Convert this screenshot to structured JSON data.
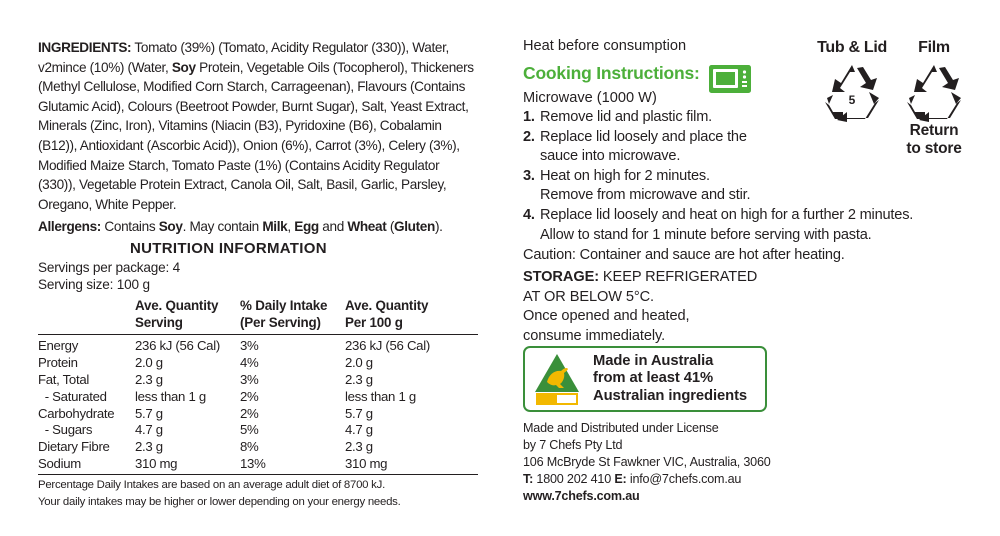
{
  "ingredients": {
    "label": "INGREDIENTS:",
    "text_before_soy": " Tomato (39%) (Tomato, Acidity Regulator (330)), Water, v2mince (10%) (Water, ",
    "soy": "Soy",
    "text_after_soy": " Protein, Vegetable Oils (Tocopherol), Thickeners (Methyl Cellulose, Modified Corn Starch, Carrageenan), Flavours (Contains Glutamic Acid), Colours (Beetroot Powder, Burnt Sugar), Salt, Yeast Extract, Minerals (Zinc, Iron), Vitamins (Niacin (B3), Pyridoxine (B6), Cobalamin (B12)), Antioxidant (Ascorbic Acid)), Onion (6%), Carrot (3%), Celery (3%), Modified Maize Starch, Tomato Paste (1%) (Contains Acidity Regulator (330)), Vegetable Protein Extract, Canola Oil, Salt, Basil, Garlic, Parsley, Oregano, White Pepper."
  },
  "allergens": {
    "label": "Allergens:",
    "t1": " Contains ",
    "soy": "Soy",
    "t2": ". May contain ",
    "milk": "Milk",
    "t3": ", ",
    "egg": "Egg",
    "t4": " and ",
    "wheat": "Wheat",
    "t5": " (",
    "gluten": "Gluten",
    "t6": ")."
  },
  "nutrition": {
    "title": "NUTRITION INFORMATION",
    "servings_per_package": "Servings per package: 4",
    "serving_size": "Serving size: 100 g",
    "headers": [
      {
        "l1": "",
        "l2": ""
      },
      {
        "l1": "Ave. Quantity",
        "l2": "Serving"
      },
      {
        "l1": "% Daily Intake",
        "l2": "(Per Serving)"
      },
      {
        "l1": "Ave. Quantity",
        "l2": "Per 100 g"
      }
    ],
    "rows": [
      [
        "Energy",
        "236 kJ (56 Cal)",
        "3%",
        "236 kJ (56 Cal)"
      ],
      [
        "Protein",
        "2.0 g",
        "4%",
        "2.0 g"
      ],
      [
        "Fat, Total",
        "2.3 g",
        "3%",
        "2.3 g"
      ],
      [
        "  - Saturated",
        "less than 1 g",
        "2%",
        "less than 1 g"
      ],
      [
        "Carbohydrate",
        "5.7 g",
        "2%",
        "5.7 g"
      ],
      [
        "  - Sugars",
        "4.7 g",
        "5%",
        "4.7 g"
      ],
      [
        "Dietary Fibre",
        "2.3 g",
        "8%",
        "2.3 g"
      ],
      [
        "Sodium",
        "310 mg",
        "13%",
        "310 mg"
      ]
    ],
    "footnote_1": "Percentage Daily Intakes are based on an average adult diet of 8700 kJ.",
    "footnote_2": "Your daily intakes may be higher or lower depending on your energy needs."
  },
  "cooking": {
    "heat_before": "Heat before consumption",
    "title": "Cooking Instructions:",
    "icon": "microwave-icon",
    "microwave": "Microwave (1000 W)",
    "steps": [
      {
        "num": "1.",
        "lines": [
          "Remove lid and plastic film."
        ]
      },
      {
        "num": "2.",
        "lines": [
          "Replace lid loosely and place the",
          "sauce into microwave."
        ]
      },
      {
        "num": "3.",
        "lines": [
          "Heat on high for 2 minutes.",
          "Remove from microwave and stir."
        ]
      },
      {
        "num": "4.",
        "lines": [
          "Replace lid loosely and heat on high for a further 2 minutes.",
          "Allow to stand for 1 minute before serving with pasta."
        ]
      }
    ],
    "caution": "Caution: Container and sauce are hot after heating."
  },
  "storage": {
    "label": "STORAGE:",
    "line1": " KEEP REFRIGERATED",
    "line2": "AT OR BELOW 5°C.",
    "line3": "Once opened and heated,",
    "line4": "consume immediately."
  },
  "badge": {
    "line1": "Made in Australia",
    "line2": "from at least 41%",
    "line3": "Australian ingredients",
    "icon": "kangaroo-triangle-icon",
    "color_green": "#3a8f3a",
    "color_gold": "#f2b800"
  },
  "company": {
    "line1": "Made and Distributed under License",
    "line2": "by 7 Chefs Pty Ltd",
    "line3": "106 McBryde St Fawkner VIC, Australia, 3060",
    "t_label": "T:",
    "phone": " 1800 202 410 ",
    "e_label": "E:",
    "email": " info@7chefs.com.au",
    "website": "www.7chefs.com.au"
  },
  "recycling": {
    "tub_label": "Tub & Lid",
    "tub_code": "5",
    "film_label": "Film",
    "film_sub1": "Return",
    "film_sub2": "to store",
    "icon": "recycle-icon"
  },
  "colors": {
    "text": "#231f20",
    "green": "#4caf3a"
  }
}
